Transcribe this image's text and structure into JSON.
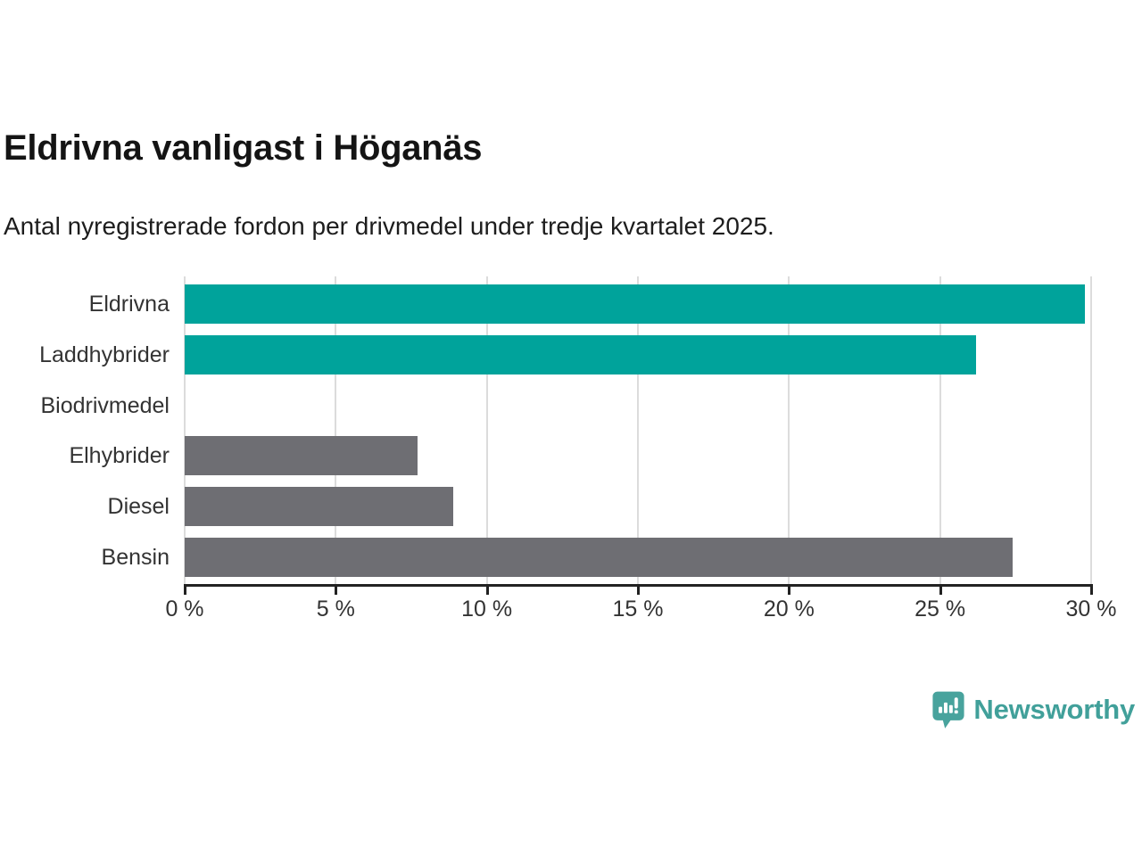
{
  "header": {
    "title": "Eldrivna vanligast i Höganäs",
    "subtitle": "Antal nyregistrerade fordon per drivmedel under tredje kvartalet 2025."
  },
  "chart_data": {
    "type": "bar",
    "orientation": "horizontal",
    "title": "Eldrivna vanligast i Höganäs",
    "subtitle": "Antal nyregistrerade fordon per drivmedel under tredje kvartalet 2025.",
    "categories": [
      "Eldrivna",
      "Laddhybrider",
      "Biodrivmedel",
      "Elhybrider",
      "Diesel",
      "Bensin"
    ],
    "values": [
      29.8,
      26.2,
      0,
      7.7,
      8.9,
      27.4
    ],
    "unit": "%",
    "bar_colors": [
      "#00a39b",
      "#00a39b",
      "#6e6e73",
      "#6e6e73",
      "#6e6e73",
      "#6e6e73"
    ],
    "xlabel": "",
    "ylabel": "",
    "xlim": [
      0,
      30
    ],
    "x_ticks": [
      0,
      5,
      10,
      15,
      20,
      25,
      30
    ],
    "x_tick_labels": [
      "0 %",
      "5 %",
      "10 %",
      "15 %",
      "20 %",
      "25 %",
      "30 %"
    ],
    "grid": "vertical-on",
    "legend": "none"
  },
  "colors": {
    "accent_teal": "#00a39b",
    "neutral_gray": "#6e6e73",
    "gridline": "#dcdcdc",
    "axis": "#222222",
    "text_dark": "#141414",
    "text_body": "#333333",
    "logo_teal": "#41a09a"
  },
  "footer": {
    "brand": "Newsworthy",
    "logo_icon": "newsworthy-speech-bubble-chart-icon"
  }
}
